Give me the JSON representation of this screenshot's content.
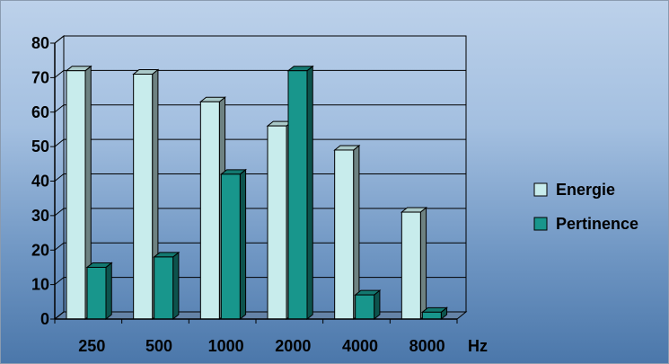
{
  "chart_data": {
    "type": "bar",
    "categories": [
      "250",
      "500",
      "1000",
      "2000",
      "4000",
      "8000"
    ],
    "series": [
      {
        "name": "Energie",
        "values": [
          72,
          71,
          63,
          56,
          49,
          31
        ]
      },
      {
        "name": "Pertinence",
        "values": [
          15,
          18,
          42,
          72,
          7,
          2
        ]
      }
    ],
    "xlabel": "Hz",
    "ylabel": "",
    "ylim": [
      0,
      80
    ],
    "yticks": [
      0,
      10,
      20,
      30,
      40,
      50,
      60,
      70,
      80
    ],
    "grid": true,
    "legend_position": "right",
    "colors": {
      "Energie": "#c8ecec",
      "Pertinence": "#18968c"
    }
  }
}
